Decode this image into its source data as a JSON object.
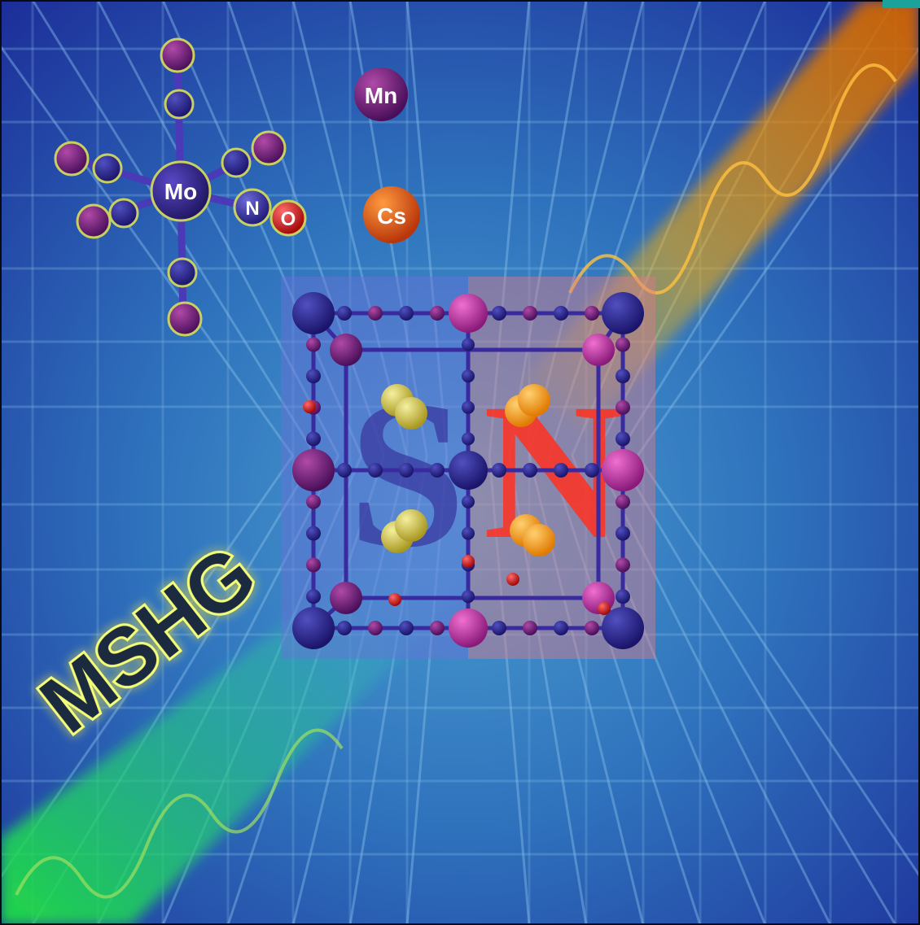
{
  "cover": {
    "headline": "MSHG",
    "letter_left": "S",
    "letter_right": "N",
    "atoms": {
      "mo": "Mo",
      "n": "N",
      "o": "O",
      "mn": "Mn",
      "cs": "Cs"
    }
  },
  "colors": {
    "background_center": "#2f7fbf",
    "background_edge": "#1a2f9a",
    "grid": "#7fb8e6",
    "beam_green": "#2fe040",
    "beam_orange": "#ffb000",
    "headline": "#f4ff7a",
    "mo_atom": "#2a1f7a",
    "mn_atom": "#6a1f7a",
    "cs_atom": "#e85a10",
    "o_atom": "#e01818",
    "corner_tab": "#1aa39a"
  }
}
